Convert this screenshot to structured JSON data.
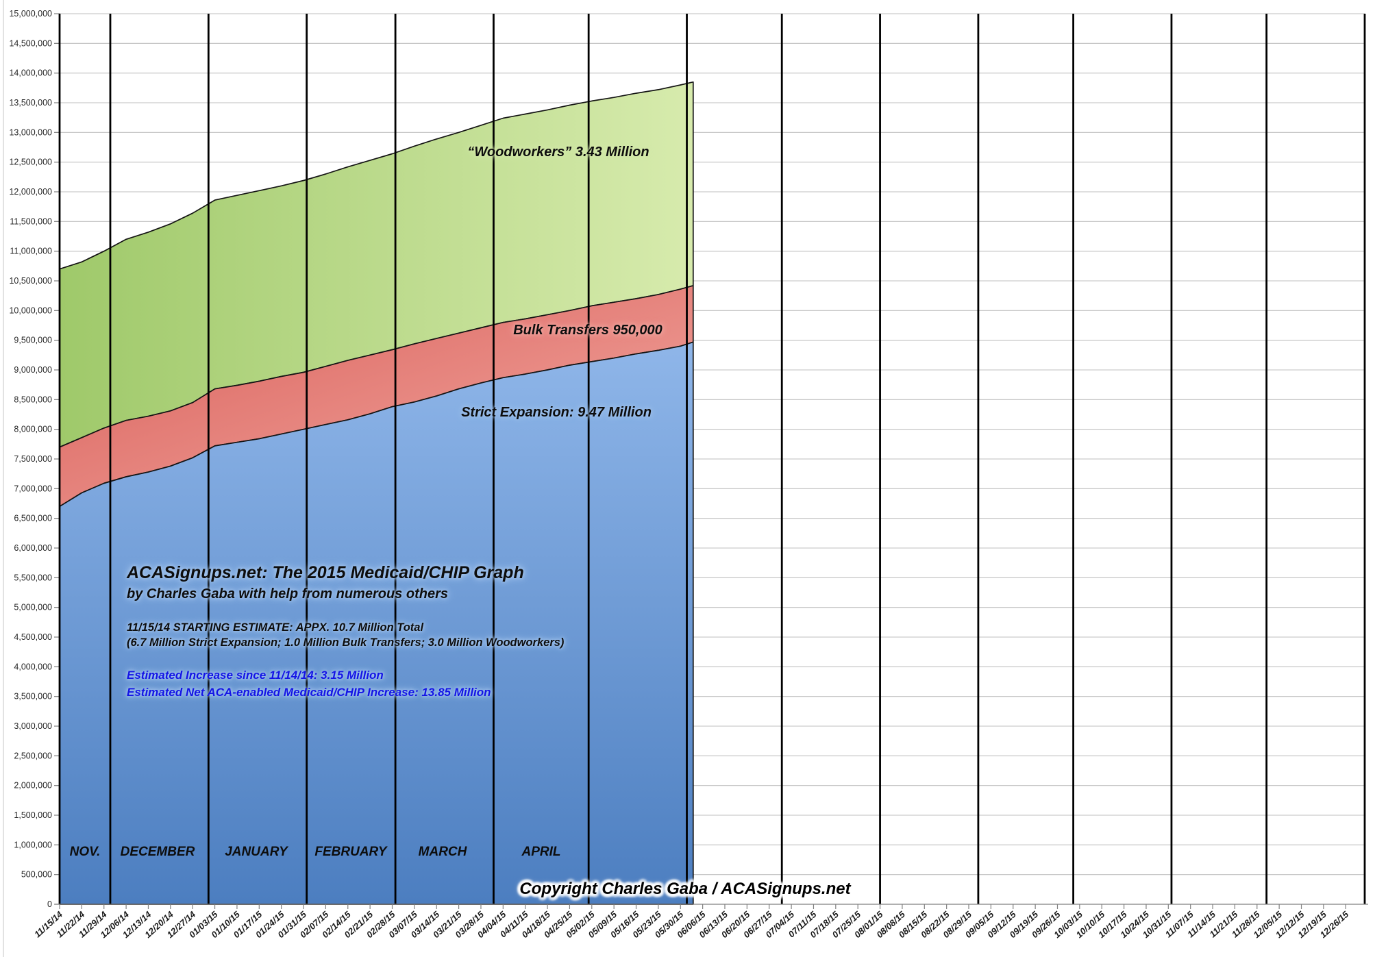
{
  "chart_data": {
    "type": "area",
    "title": "ACASignups.net: The 2015 Medicaid/CHIP Graph",
    "subtitle": "by Charles Gaba with help from numerous others",
    "starting_estimate_line1": "11/15/14 STARTING ESTIMATE: APPX. 10.7 Million Total",
    "starting_estimate_line2": "(6.7 Million Strict Expansion; 1.0 Million Bulk Transfers; 3.0 Million Woodworkers)",
    "estimate_increase_line": "Estimated Increase since 11/14/14: 3.15 Million",
    "estimate_net_line": "Estimated Net ACA-enabled Medicaid/CHIP Increase: 13.85 Million",
    "copyright": "Copyright Charles Gaba / ACASignups.net",
    "ylim": [
      0,
      15000000
    ],
    "ytick_step": 500000,
    "grid": true,
    "legend_position": "none",
    "x_axis_start": "2014-11-15",
    "x_axis_end": "2016-01-01",
    "x_tick_labels": [
      "11/15/14",
      "11/22/14",
      "11/29/14",
      "12/06/14",
      "12/13/14",
      "12/20/14",
      "12/27/14",
      "01/03/15",
      "01/10/15",
      "01/17/15",
      "01/24/15",
      "01/31/15",
      "02/07/15",
      "02/14/15",
      "02/21/15",
      "02/28/15",
      "03/07/15",
      "03/14/15",
      "03/21/15",
      "03/28/15",
      "04/04/15",
      "04/11/15",
      "04/18/15",
      "04/25/15",
      "05/02/15",
      "05/09/15",
      "05/16/15",
      "05/23/15",
      "05/30/15",
      "06/06/15",
      "06/13/15",
      "06/20/15",
      "06/27/15",
      "07/04/15",
      "07/11/15",
      "07/18/15",
      "07/25/15",
      "08/01/15",
      "08/08/15",
      "08/15/15",
      "08/22/15",
      "08/29/15",
      "09/05/15",
      "09/12/15",
      "09/19/15",
      "09/26/15",
      "10/03/15",
      "10/10/15",
      "10/17/15",
      "10/24/15",
      "10/31/15",
      "11/07/15",
      "11/14/15",
      "11/21/15",
      "11/28/15",
      "12/05/15",
      "12/12/15",
      "12/19/15",
      "12/26/15"
    ],
    "month_separator_dates": [
      "2014-11-15",
      "2014-12-01",
      "2015-01-01",
      "2015-02-01",
      "2015-03-01",
      "2015-04-01",
      "2015-05-01",
      "2015-06-01",
      "2015-07-01",
      "2015-08-01",
      "2015-09-01",
      "2015-10-01",
      "2015-11-01",
      "2015-12-01",
      "2016-01-01"
    ],
    "month_labels": [
      {
        "label": "NOV.",
        "center_date": "2014-11-23"
      },
      {
        "label": "DECEMBER",
        "center_date": "2014-12-16"
      },
      {
        "label": "JANUARY",
        "center_date": "2015-01-16"
      },
      {
        "label": "FEBRUARY",
        "center_date": "2015-02-15"
      },
      {
        "label": "MARCH",
        "center_date": "2015-03-16"
      },
      {
        "label": "APRIL",
        "center_date": "2015-04-16"
      }
    ],
    "data_dates": [
      "2014-11-15",
      "2014-11-22",
      "2014-11-29",
      "2014-12-06",
      "2014-12-13",
      "2014-12-20",
      "2014-12-27",
      "2015-01-03",
      "2015-01-10",
      "2015-01-17",
      "2015-01-24",
      "2015-01-31",
      "2015-02-07",
      "2015-02-14",
      "2015-02-21",
      "2015-02-28",
      "2015-03-07",
      "2015-03-14",
      "2015-03-21",
      "2015-03-28",
      "2015-04-04",
      "2015-04-11",
      "2015-04-18",
      "2015-04-25",
      "2015-05-02",
      "2015-05-09",
      "2015-05-16",
      "2015-05-23",
      "2015-05-30",
      "2015-06-03"
    ],
    "series": [
      {
        "name": "Strict Expansion",
        "in_chart_label": "Strict Expansion: 9.47 Million",
        "final_value": 9470000,
        "cumulative_top_millions": [
          6.7,
          6.93,
          7.09,
          7.2,
          7.28,
          7.38,
          7.52,
          7.72,
          7.78,
          7.84,
          7.92,
          8.0,
          8.08,
          8.16,
          8.26,
          8.38,
          8.46,
          8.56,
          8.68,
          8.78,
          8.87,
          8.93,
          9.0,
          9.08,
          9.14,
          9.2,
          9.27,
          9.33,
          9.4,
          9.47
        ]
      },
      {
        "name": "Bulk Transfers",
        "in_chart_label": "Bulk Transfers 950,000",
        "final_value": 950000,
        "cumulative_top_millions": [
          7.7,
          7.86,
          8.02,
          8.15,
          8.22,
          8.31,
          8.45,
          8.68,
          8.74,
          8.81,
          8.89,
          8.96,
          9.06,
          9.16,
          9.25,
          9.34,
          9.44,
          9.53,
          9.62,
          9.71,
          9.8,
          9.86,
          9.93,
          10.0,
          10.08,
          10.14,
          10.2,
          10.27,
          10.36,
          10.42
        ]
      },
      {
        "name": "Woodworkers",
        "in_chart_label": "“Woodworkers” 3.43 Million",
        "final_value": 3430000,
        "cumulative_top_millions": [
          10.7,
          10.82,
          11.0,
          11.2,
          11.32,
          11.46,
          11.64,
          11.86,
          11.94,
          12.02,
          12.1,
          12.19,
          12.3,
          12.42,
          12.53,
          12.64,
          12.77,
          12.89,
          13.0,
          13.12,
          13.24,
          13.31,
          13.38,
          13.46,
          13.53,
          13.59,
          13.66,
          13.72,
          13.8,
          13.85
        ]
      }
    ],
    "colors": {
      "strict_fill_top": "#8FB6E9",
      "strict_fill_bottom": "#4C7EC0",
      "bulk_fill_left": "#D85D57",
      "bulk_fill_right": "#F4ACA5",
      "wood_fill_left": "#9FC96A",
      "wood_fill_right": "#D7EBAD",
      "boundary_line": "#141414",
      "gridline": "#bfbfbf",
      "month_line": "#000000",
      "axis": "#808080",
      "tick_label": "#262626",
      "estimate_text": "#1414e6"
    }
  }
}
